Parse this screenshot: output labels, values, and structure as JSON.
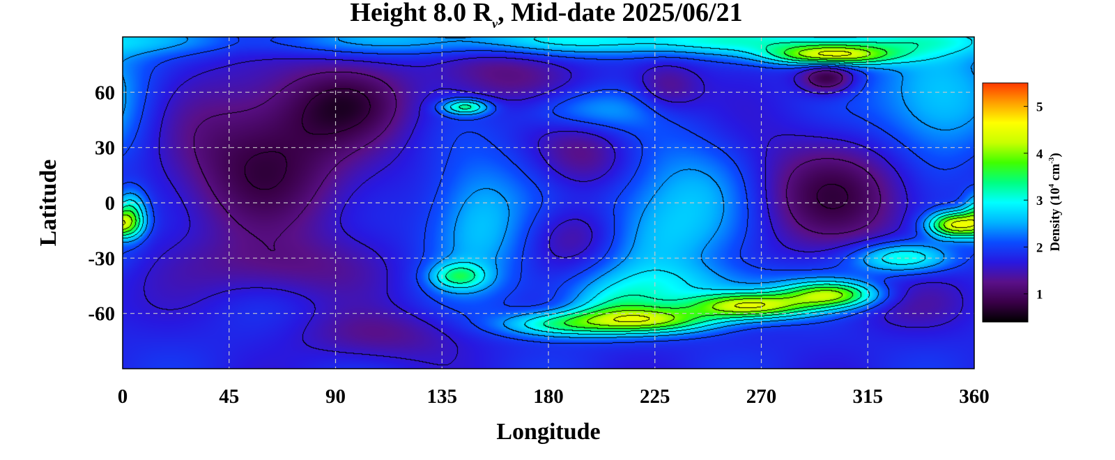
{
  "title": {
    "prefix": "Height 8.0 R",
    "subscript": "v",
    "suffix": ", Mid-date 2025/06/21"
  },
  "chart_data": {
    "type": "heatmap",
    "title": "Height 8.0 Rv, Mid-date 2025/06/21",
    "xlabel": "Longitude",
    "ylabel": "Latitude",
    "xlim": [
      0,
      360
    ],
    "ylim": [
      -90,
      90
    ],
    "xticks": [
      0,
      45,
      90,
      135,
      180,
      225,
      270,
      315,
      360
    ],
    "yticks": [
      60,
      30,
      0,
      -30,
      -60
    ],
    "ytick_labels": [
      "60",
      "30",
      "0",
      "-30",
      "-60"
    ],
    "grid": true,
    "contours": true,
    "colorbar": {
      "label_prefix": "Density (10",
      "label_exp1": "4",
      "label_mid": " cm",
      "label_exp2": "-3",
      "label_suffix": ")",
      "range": [
        0.4,
        5.5
      ],
      "ticks": [
        1,
        2,
        3,
        4,
        5
      ],
      "colormap": [
        "#000000",
        "#3a0048",
        "#5a1088",
        "#2818e0",
        "#0a4cff",
        "#00b4ff",
        "#00ffff",
        "#00ff80",
        "#40ff00",
        "#c8ff00",
        "#ffff00",
        "#ffa000",
        "#ff3800"
      ]
    },
    "background_density": 1.8,
    "features": [
      {
        "lon": 60,
        "lat": 25,
        "amp": -1.0,
        "sx": 30,
        "sy": 30
      },
      {
        "lon": 95,
        "lat": 55,
        "amp": -0.7,
        "sx": 20,
        "sy": 15
      },
      {
        "lon": 65,
        "lat": -35,
        "amp": -0.5,
        "sx": 28,
        "sy": 12
      },
      {
        "lon": 110,
        "lat": -72,
        "amp": -0.5,
        "sx": 25,
        "sy": 10
      },
      {
        "lon": 160,
        "lat": 70,
        "amp": -0.6,
        "sx": 20,
        "sy": 14
      },
      {
        "lon": 193,
        "lat": -18,
        "amp": -0.8,
        "sx": 15,
        "sy": 13
      },
      {
        "lon": 195,
        "lat": 25,
        "amp": -0.6,
        "sx": 14,
        "sy": 14
      },
      {
        "lon": 230,
        "lat": 62,
        "amp": -0.6,
        "sx": 10,
        "sy": 10
      },
      {
        "lon": 300,
        "lat": 5,
        "amp": -0.9,
        "sx": 26,
        "sy": 22
      },
      {
        "lon": 298,
        "lat": 68,
        "amp": -1.1,
        "sx": 8,
        "sy": 6
      },
      {
        "lon": 150,
        "lat": -10,
        "amp": 0.9,
        "sx": 15,
        "sy": 25
      },
      {
        "lon": 222,
        "lat": -20,
        "amp": 0.8,
        "sx": 25,
        "sy": 20
      },
      {
        "lon": 240,
        "lat": 10,
        "amp": 0.6,
        "sx": 20,
        "sy": 20
      },
      {
        "lon": 195,
        "lat": 50,
        "amp": 0.7,
        "sx": 20,
        "sy": 8
      },
      {
        "lon": 145,
        "lat": 52,
        "amp": 1.5,
        "sx": 7,
        "sy": 3
      },
      {
        "lon": 142,
        "lat": -40,
        "amp": 1.2,
        "sx": 8,
        "sy": 5
      },
      {
        "lon": 3,
        "lat": -7,
        "amp": 1.6,
        "sx": 5,
        "sy": 9
      },
      {
        "lon": 208,
        "lat": -57,
        "amp": 0.9,
        "sx": 15,
        "sy": 8
      },
      {
        "lon": 300,
        "lat": 80,
        "amp": 2.4,
        "sx": 18,
        "sy": 4
      },
      {
        "lon": 230,
        "lat": 88,
        "amp": 1.2,
        "sx": 120,
        "sy": 6
      },
      {
        "lon": 345,
        "lat": 55,
        "amp": 1.0,
        "sx": 20,
        "sy": 25
      },
      {
        "lon": 185,
        "lat": -66,
        "amp": 1.4,
        "sx": 18,
        "sy": 5
      },
      {
        "lon": 225,
        "lat": -64,
        "amp": 1.8,
        "sx": 20,
        "sy": 5
      },
      {
        "lon": 265,
        "lat": -56,
        "amp": 2.5,
        "sx": 18,
        "sy": 5
      },
      {
        "lon": 300,
        "lat": -50,
        "amp": 2.0,
        "sx": 14,
        "sy": 5
      },
      {
        "lon": 330,
        "lat": -30,
        "amp": 1.4,
        "sx": 15,
        "sy": 6
      },
      {
        "lon": 352,
        "lat": -12,
        "amp": 2.6,
        "sx": 8,
        "sy": 5
      },
      {
        "lon": 245,
        "lat": -45,
        "amp": 0.6,
        "sx": 40,
        "sy": 8
      },
      {
        "lon": 330,
        "lat": -55,
        "amp": -0.3,
        "sx": 20,
        "sy": 10
      }
    ]
  }
}
